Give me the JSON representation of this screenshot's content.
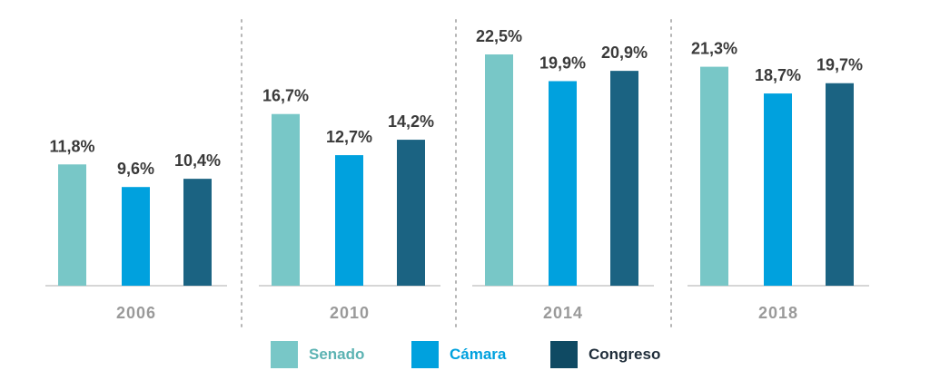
{
  "chart_data": {
    "type": "bar",
    "categories": [
      "2006",
      "2010",
      "2014",
      "2018"
    ],
    "series": [
      {
        "name": "Senado",
        "color": "#78c7c7",
        "values": [
          11.8,
          16.7,
          22.5,
          21.3
        ],
        "labels": [
          "11,8%",
          "16,7%",
          "22,5%",
          "21,3%"
        ]
      },
      {
        "name": "Cámara",
        "color": "#00a1de",
        "values": [
          9.6,
          12.7,
          19.9,
          18.7
        ],
        "labels": [
          "9,6%",
          "12,7%",
          "19,9%",
          "18,7%"
        ]
      },
      {
        "name": "Congreso",
        "color": "#1b6382",
        "values": [
          10.4,
          14.2,
          20.9,
          19.7
        ],
        "labels": [
          "10,4%",
          "14,2%",
          "20,9%",
          "19,7%"
        ]
      }
    ],
    "ylim": [
      0,
      25
    ],
    "title": "",
    "xlabel": "",
    "ylabel": "",
    "legend_position": "bottom",
    "grid": false
  },
  "legend": {
    "senado": "Senado",
    "camara": "Cámara",
    "congreso": "Congreso"
  },
  "colors": {
    "senado": "#78c7c7",
    "camara": "#00a1de",
    "congreso": "#1b6382",
    "congreso_legend": "#0f4a63",
    "year_text": "#9a9a9a",
    "value_text": "#3a3a3a"
  }
}
